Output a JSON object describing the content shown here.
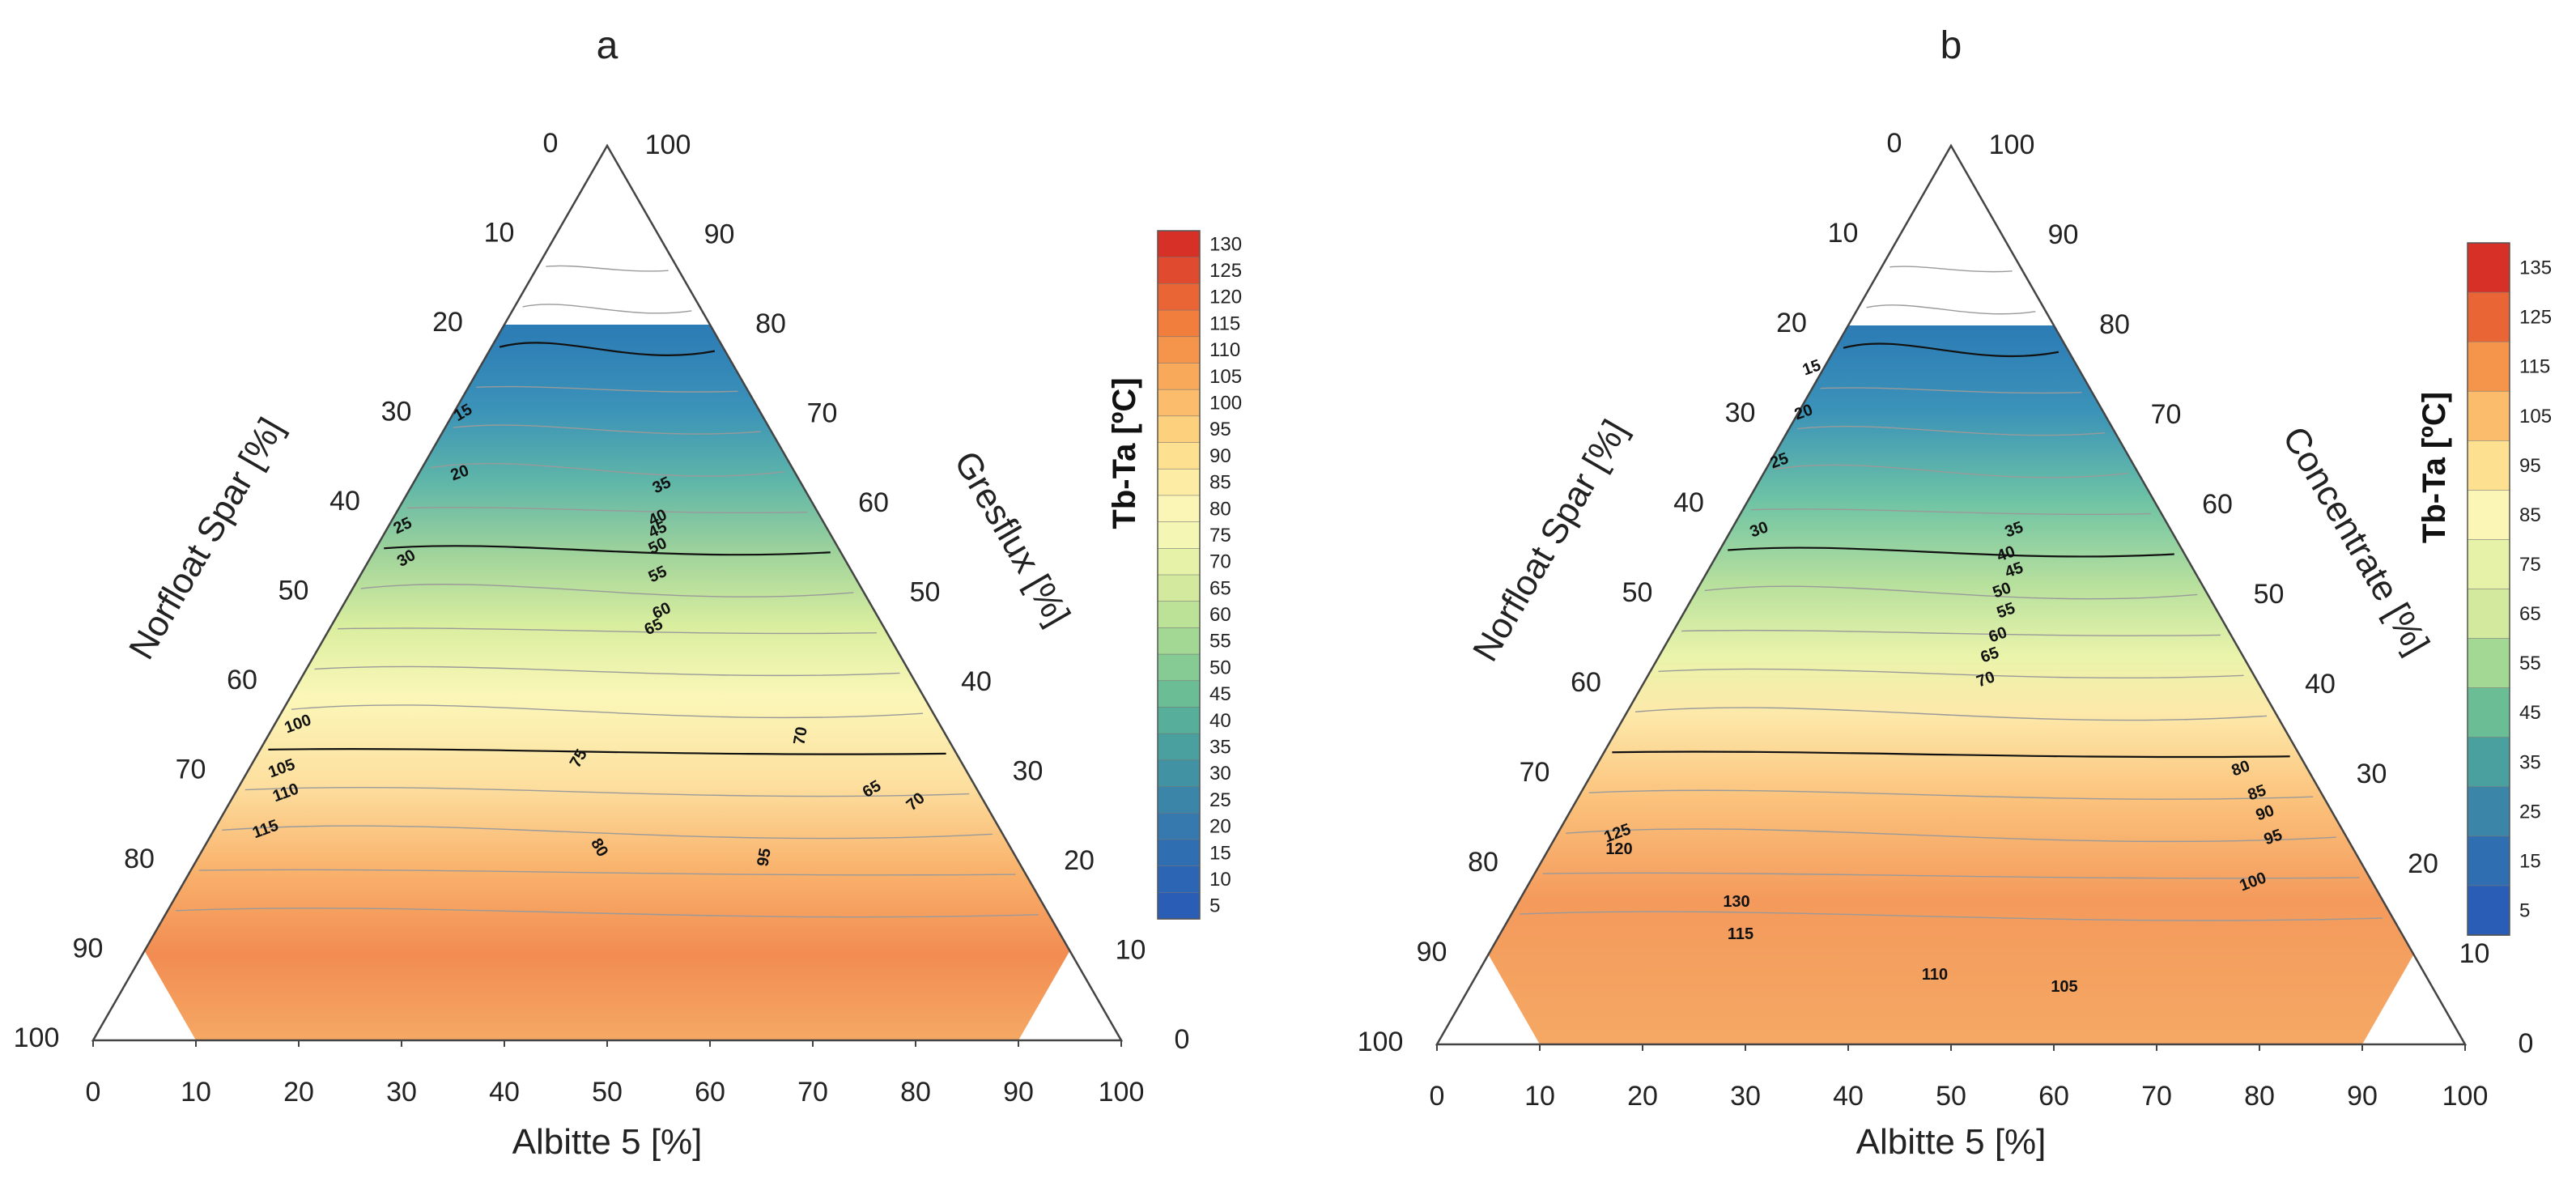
{
  "chart_data": [
    {
      "type": "ternary-contour",
      "title": "a",
      "axes": {
        "bottom": {
          "label": "Albitte 5   [%]"
        },
        "left": {
          "label": "Norfloat Spar  [%]"
        },
        "right": {
          "label": "Gresflux  [%]"
        }
      },
      "ticks": [
        "0",
        "10",
        "20",
        "30",
        "40",
        "50",
        "60",
        "70",
        "80",
        "90",
        "100"
      ],
      "colorbar": {
        "title": "Tb-Ta  [ºC]",
        "levels": [
          130,
          125,
          120,
          115,
          110,
          105,
          100,
          95,
          90,
          85,
          80,
          75,
          70,
          65,
          60,
          55,
          50,
          45,
          40,
          35,
          30,
          25,
          20,
          15,
          10,
          5
        ]
      },
      "contour_labels": [
        "15",
        "20",
        "25",
        "30",
        "35",
        "40",
        "45",
        "50",
        "55",
        "60",
        "65",
        "70",
        "75",
        "80",
        "95",
        "100",
        "105",
        "110",
        "115",
        "65",
        "70"
      ],
      "region": {
        "albite_min": 10,
        "albite_max": 90,
        "norfloat_min": 10,
        "norfloat_max": 80
      }
    },
    {
      "type": "ternary-contour",
      "title": "b",
      "axes": {
        "bottom": {
          "label": "Albitte 5   [%]"
        },
        "left": {
          "label": "Norfloat Spar  [%]"
        },
        "right": {
          "label": "Concentrate  [%]"
        }
      },
      "ticks": [
        "0",
        "10",
        "20",
        "30",
        "40",
        "50",
        "60",
        "70",
        "80",
        "90",
        "100"
      ],
      "colorbar": {
        "title": "Tb-Ta  [ºC]",
        "levels": [
          135,
          125,
          115,
          105,
          95,
          85,
          75,
          65,
          55,
          45,
          35,
          25,
          15,
          5
        ]
      },
      "contour_labels": [
        "15",
        "20",
        "25",
        "30",
        "35",
        "40",
        "45",
        "50",
        "55",
        "60",
        "65",
        "70",
        "80",
        "85",
        "90",
        "95",
        "100",
        "105",
        "110",
        "115",
        "120",
        "125",
        "130"
      ],
      "region": {
        "albite_min": 10,
        "albite_max": 90,
        "norfloat_min": 10,
        "norfloat_max": 80
      }
    }
  ]
}
